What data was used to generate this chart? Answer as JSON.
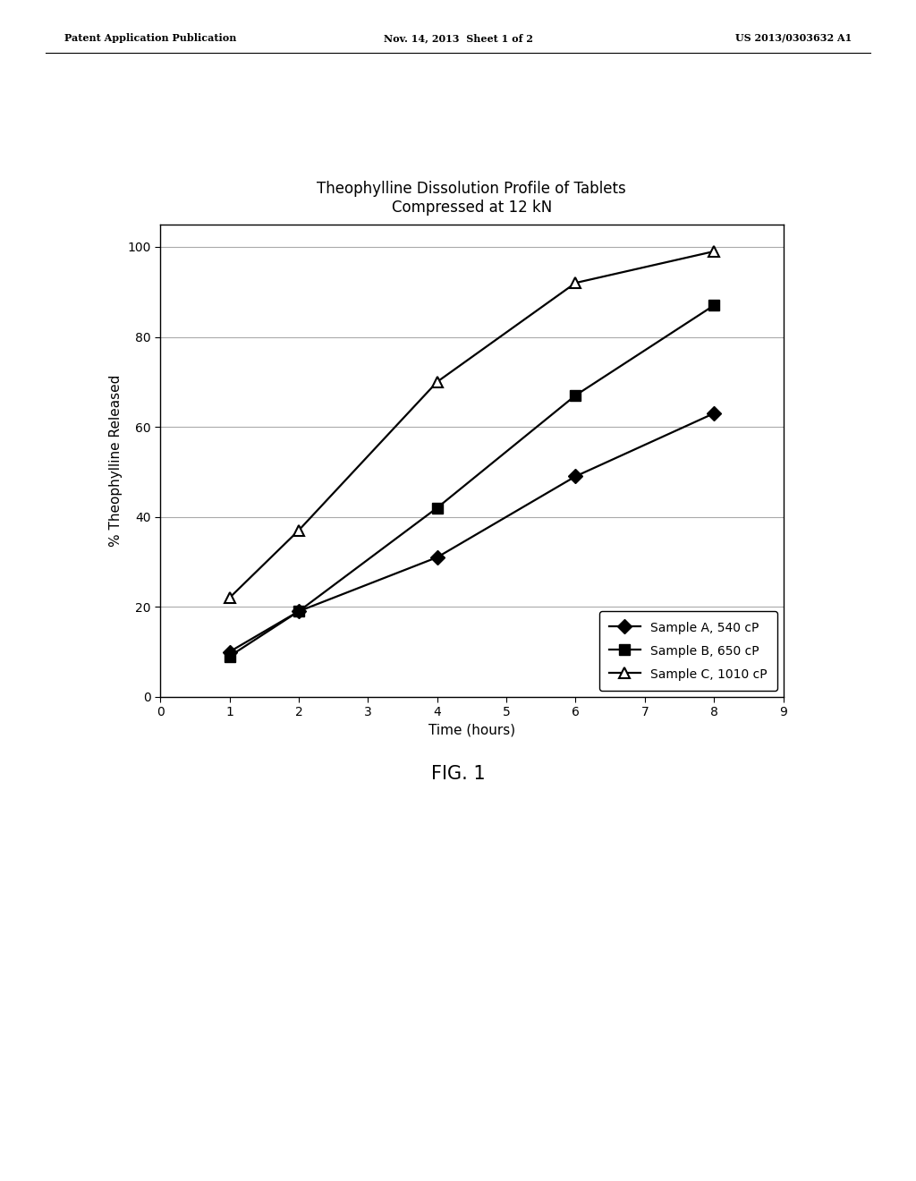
{
  "title_line1": "Theophylline Dissolution Profile of Tablets",
  "title_line2": "Compressed at 12 kN",
  "xlabel": "Time (hours)",
  "ylabel": "% Theophylline Released",
  "fig_label": "FIG. 1",
  "header_left": "Patent Application Publication",
  "header_center": "Nov. 14, 2013  Sheet 1 of 2",
  "header_right": "US 2013/0303632 A1",
  "xlim": [
    0,
    9
  ],
  "ylim": [
    0,
    105
  ],
  "xticks": [
    0,
    1,
    2,
    3,
    4,
    5,
    6,
    7,
    8,
    9
  ],
  "yticks": [
    0,
    20,
    40,
    60,
    80,
    100
  ],
  "series_A": {
    "label": "Sample A, 540 cP",
    "x": [
      1,
      2,
      4,
      6,
      8
    ],
    "y": [
      10,
      19,
      31,
      49,
      63
    ],
    "marker": "D",
    "color": "#000000",
    "markersize": 8,
    "fillstyle": "full"
  },
  "series_B": {
    "label": "Sample B, 650 cP",
    "x": [
      1,
      2,
      4,
      6,
      8
    ],
    "y": [
      9,
      19,
      42,
      67,
      87
    ],
    "marker": "s",
    "color": "#000000",
    "markersize": 8,
    "fillstyle": "full"
  },
  "series_C": {
    "label": "Sample C, 1010 cP",
    "x": [
      1,
      2,
      4,
      6,
      8
    ],
    "y": [
      22,
      37,
      70,
      92,
      99
    ],
    "marker": "^",
    "color": "#000000",
    "markersize": 9,
    "fillstyle": "none"
  },
  "background_color": "#ffffff",
  "plot_background": "#ffffff",
  "grid_color": "#aaaaaa",
  "linewidth": 1.6,
  "header_fontsize": 8,
  "title_fontsize": 12,
  "axis_label_fontsize": 11,
  "tick_fontsize": 10,
  "legend_fontsize": 10,
  "fig_label_fontsize": 15
}
